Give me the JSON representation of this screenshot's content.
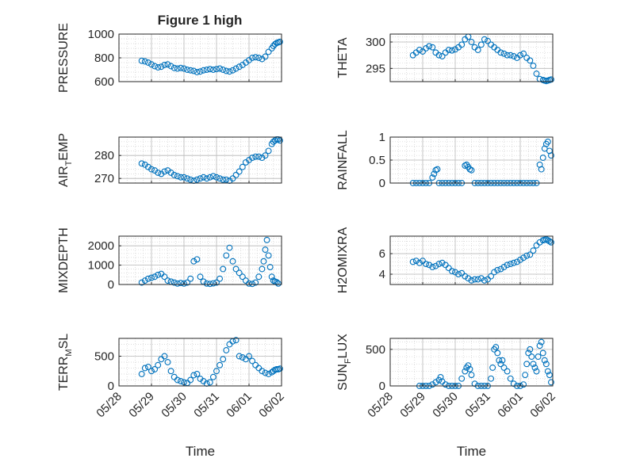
{
  "figure": {
    "title": "Figure 1 high"
  },
  "chart_data": [
    {
      "type": "scatter",
      "ylabel": "PRESSURE",
      "ylim": [
        600,
        1000
      ],
      "yticks": [
        600,
        800,
        1000
      ],
      "xlim": [
        "05/28",
        "06/02"
      ],
      "xticks": [
        "05/28",
        "05/29",
        "05/30",
        "05/31",
        "06/01",
        "06/02"
      ],
      "xlabel": "",
      "grid": true,
      "series": [
        {
          "x": [
            0.7,
            0.8,
            0.9,
            1.0,
            1.1,
            1.2,
            1.3,
            1.4,
            1.5,
            1.6,
            1.7,
            1.8,
            1.9,
            2.0,
            2.1,
            2.2,
            2.3,
            2.4,
            2.5,
            2.6,
            2.7,
            2.8,
            2.9,
            3.0,
            3.1,
            3.2,
            3.3,
            3.4,
            3.5,
            3.6,
            3.7,
            3.8,
            3.9,
            4.0,
            4.1,
            4.2,
            4.3,
            4.4,
            4.5,
            4.6,
            4.7,
            4.75,
            4.8,
            4.85,
            4.9,
            4.95
          ],
          "y": [
            775,
            770,
            760,
            745,
            730,
            720,
            725,
            740,
            745,
            730,
            715,
            710,
            715,
            710,
            700,
            695,
            690,
            680,
            685,
            695,
            700,
            705,
            700,
            705,
            710,
            700,
            690,
            685,
            695,
            710,
            725,
            740,
            760,
            780,
            800,
            805,
            800,
            790,
            810,
            850,
            880,
            900,
            915,
            925,
            930,
            935
          ]
        }
      ]
    },
    {
      "type": "scatter",
      "ylabel": "THETA",
      "ylim": [
        292.5,
        301.5
      ],
      "yticks": [
        295,
        300
      ],
      "xlim": [
        "05/28",
        "06/02"
      ],
      "xticks": [
        "05/28",
        "05/29",
        "05/30",
        "05/31",
        "06/01",
        "06/02"
      ],
      "xlabel": "",
      "grid": true,
      "series": [
        {
          "x": [
            0.7,
            0.8,
            0.9,
            1.0,
            1.1,
            1.2,
            1.3,
            1.4,
            1.5,
            1.6,
            1.7,
            1.8,
            1.9,
            2.0,
            2.1,
            2.2,
            2.3,
            2.4,
            2.5,
            2.6,
            2.7,
            2.8,
            2.9,
            3.0,
            3.1,
            3.2,
            3.3,
            3.4,
            3.5,
            3.6,
            3.7,
            3.8,
            3.9,
            4.0,
            4.1,
            4.2,
            4.3,
            4.4,
            4.5,
            4.6,
            4.7,
            4.75,
            4.8,
            4.85,
            4.9,
            4.95
          ],
          "y": [
            297.5,
            298.0,
            298.5,
            298.2,
            298.8,
            299.2,
            299.0,
            298.0,
            297.5,
            297.3,
            298.0,
            298.5,
            298.4,
            298.6,
            299.0,
            299.5,
            300.5,
            301.0,
            300.0,
            299.0,
            298.5,
            299.5,
            300.5,
            300.2,
            299.5,
            299.0,
            298.5,
            298.0,
            297.8,
            297.5,
            297.5,
            297.3,
            297.0,
            297.5,
            297.8,
            297.0,
            296.5,
            295.5,
            294.0,
            293.0,
            292.8,
            292.7,
            292.6,
            292.7,
            292.8,
            292.9
          ]
        }
      ]
    },
    {
      "type": "scatter",
      "ylabel": "AIR_TEMP",
      "ylim": [
        268,
        288
      ],
      "yticks": [
        270,
        280
      ],
      "xlim": [
        "05/28",
        "06/02"
      ],
      "xticks": [
        "05/28",
        "05/29",
        "05/30",
        "05/31",
        "06/01",
        "06/02"
      ],
      "xlabel": "",
      "grid": true,
      "series": [
        {
          "x": [
            0.7,
            0.8,
            0.9,
            1.0,
            1.1,
            1.2,
            1.3,
            1.4,
            1.5,
            1.6,
            1.7,
            1.8,
            1.9,
            2.0,
            2.1,
            2.2,
            2.3,
            2.4,
            2.5,
            2.6,
            2.7,
            2.8,
            2.9,
            3.0,
            3.1,
            3.2,
            3.3,
            3.4,
            3.5,
            3.6,
            3.7,
            3.8,
            3.9,
            4.0,
            4.1,
            4.2,
            4.3,
            4.4,
            4.5,
            4.6,
            4.7,
            4.75,
            4.8,
            4.85,
            4.9,
            4.95
          ],
          "y": [
            276.5,
            276.0,
            275.0,
            274.0,
            273.5,
            272.5,
            272.0,
            273.0,
            273.5,
            272.5,
            271.5,
            271.0,
            270.5,
            270.5,
            270.0,
            269.5,
            269.0,
            269.5,
            270.0,
            270.5,
            270.0,
            270.5,
            271.0,
            270.5,
            270.0,
            269.5,
            269.5,
            269.0,
            270.0,
            271.5,
            273.0,
            275.0,
            277.0,
            278.0,
            279.0,
            279.5,
            279.5,
            279.0,
            280.0,
            282.0,
            285.0,
            286.0,
            286.5,
            287.0,
            287.0,
            286.5
          ]
        }
      ]
    },
    {
      "type": "scatter",
      "ylabel": "RAINFALL",
      "ylim": [
        0,
        1
      ],
      "yticks": [
        0,
        0.5,
        1
      ],
      "xlim": [
        "05/28",
        "06/02"
      ],
      "xticks": [
        "05/28",
        "05/29",
        "05/30",
        "05/31",
        "06/01",
        "06/02"
      ],
      "xlabel": "",
      "grid": true,
      "series": [
        {
          "x": [
            0.7,
            0.8,
            0.9,
            1.0,
            1.1,
            1.2,
            1.3,
            1.35,
            1.4,
            1.45,
            1.5,
            1.6,
            1.7,
            1.8,
            1.9,
            2.0,
            2.1,
            2.2,
            2.3,
            2.35,
            2.4,
            2.45,
            2.5,
            2.6,
            2.7,
            2.8,
            2.9,
            3.0,
            3.1,
            3.2,
            3.3,
            3.4,
            3.5,
            3.6,
            3.7,
            3.8,
            3.9,
            4.0,
            4.1,
            4.2,
            4.3,
            4.4,
            4.5,
            4.6,
            4.65,
            4.7,
            4.75,
            4.8,
            4.85,
            4.9,
            4.95
          ],
          "y": [
            0,
            0,
            0,
            0,
            0,
            0,
            0.12,
            0.2,
            0.28,
            0.3,
            0,
            0,
            0,
            0,
            0,
            0,
            0,
            0,
            0.38,
            0.4,
            0.35,
            0.3,
            0.28,
            0,
            0,
            0,
            0,
            0,
            0,
            0,
            0,
            0,
            0,
            0,
            0,
            0,
            0,
            0,
            0,
            0,
            0,
            0,
            0,
            0.4,
            0.3,
            0.55,
            0.75,
            0.85,
            0.9,
            0.7,
            0.6
          ]
        }
      ]
    },
    {
      "type": "scatter",
      "ylabel": "MIXDEPTH",
      "ylim": [
        0,
        2500
      ],
      "yticks": [
        0,
        1000,
        2000
      ],
      "xlim": [
        "05/28",
        "06/02"
      ],
      "xticks": [
        "05/28",
        "05/29",
        "05/30",
        "05/31",
        "06/01",
        "06/02"
      ],
      "xlabel": "",
      "grid": true,
      "series": [
        {
          "x": [
            0.7,
            0.8,
            0.9,
            1.0,
            1.1,
            1.2,
            1.3,
            1.4,
            1.5,
            1.6,
            1.7,
            1.8,
            1.9,
            2.0,
            2.1,
            2.2,
            2.3,
            2.4,
            2.5,
            2.6,
            2.7,
            2.8,
            2.9,
            3.0,
            3.1,
            3.2,
            3.3,
            3.4,
            3.5,
            3.6,
            3.7,
            3.8,
            3.9,
            4.0,
            4.1,
            4.2,
            4.3,
            4.4,
            4.45,
            4.5,
            4.55,
            4.6,
            4.65,
            4.7,
            4.75,
            4.8,
            4.85,
            4.9
          ],
          "y": [
            100,
            200,
            300,
            350,
            400,
            500,
            550,
            400,
            200,
            150,
            100,
            50,
            80,
            50,
            100,
            300,
            1200,
            1300,
            400,
            150,
            50,
            30,
            60,
            100,
            300,
            800,
            1500,
            1900,
            1200,
            800,
            600,
            400,
            200,
            50,
            30,
            100,
            400,
            800,
            1200,
            1800,
            2300,
            1500,
            900,
            400,
            200,
            150,
            120,
            50
          ]
        }
      ]
    },
    {
      "type": "scatter",
      "ylabel": "H2OMIXRA",
      "ylim": [
        3,
        7.7
      ],
      "yticks": [
        4,
        6
      ],
      "xlim": [
        "05/28",
        "06/02"
      ],
      "xticks": [
        "05/28",
        "05/29",
        "05/30",
        "05/31",
        "06/01",
        "06/02"
      ],
      "xlabel": "",
      "grid": true,
      "series": [
        {
          "x": [
            0.7,
            0.8,
            0.9,
            1.0,
            1.1,
            1.2,
            1.3,
            1.4,
            1.5,
            1.6,
            1.7,
            1.8,
            1.9,
            2.0,
            2.1,
            2.2,
            2.3,
            2.4,
            2.5,
            2.6,
            2.7,
            2.8,
            2.9,
            3.0,
            3.1,
            3.2,
            3.3,
            3.4,
            3.5,
            3.6,
            3.7,
            3.8,
            3.9,
            4.0,
            4.1,
            4.2,
            4.3,
            4.4,
            4.5,
            4.6,
            4.7,
            4.75,
            4.8,
            4.85,
            4.9,
            4.95
          ],
          "y": [
            5.2,
            5.3,
            5.1,
            5.3,
            5.0,
            4.9,
            4.7,
            4.8,
            5.0,
            5.1,
            4.9,
            4.6,
            4.3,
            4.2,
            4.0,
            4.1,
            3.8,
            3.6,
            3.4,
            3.5,
            3.5,
            3.6,
            3.4,
            3.5,
            3.8,
            4.2,
            4.4,
            4.5,
            4.7,
            4.9,
            5.0,
            5.1,
            5.2,
            5.4,
            5.6,
            5.8,
            5.9,
            6.3,
            6.8,
            7.1,
            7.3,
            7.35,
            7.4,
            7.3,
            7.2,
            7.1
          ]
        }
      ]
    },
    {
      "type": "scatter",
      "ylabel": "TERR_MSL",
      "ylim": [
        0,
        800
      ],
      "yticks": [
        0,
        500
      ],
      "xlim": [
        "05/28",
        "06/02"
      ],
      "xticks": [
        "05/28",
        "05/29",
        "05/30",
        "05/31",
        "06/01",
        "06/02"
      ],
      "xlabel": "Time",
      "grid": true,
      "series": [
        {
          "x": [
            0.7,
            0.8,
            0.9,
            1.0,
            1.1,
            1.2,
            1.3,
            1.4,
            1.5,
            1.6,
            1.7,
            1.8,
            1.9,
            2.0,
            2.1,
            2.2,
            2.3,
            2.4,
            2.5,
            2.6,
            2.7,
            2.8,
            2.9,
            3.0,
            3.1,
            3.2,
            3.3,
            3.4,
            3.5,
            3.6,
            3.7,
            3.8,
            3.9,
            4.0,
            4.1,
            4.2,
            4.3,
            4.4,
            4.5,
            4.6,
            4.7,
            4.75,
            4.8,
            4.85,
            4.9,
            4.95
          ],
          "y": [
            200,
            300,
            320,
            250,
            280,
            350,
            450,
            500,
            400,
            250,
            150,
            100,
            80,
            60,
            50,
            100,
            180,
            200,
            120,
            80,
            40,
            60,
            150,
            250,
            350,
            450,
            600,
            700,
            750,
            770,
            500,
            480,
            450,
            500,
            420,
            350,
            300,
            250,
            220,
            200,
            230,
            250,
            270,
            280,
            280,
            290
          ]
        }
      ]
    },
    {
      "type": "scatter",
      "ylabel": "SUN_FLUX",
      "ylim": [
        0,
        650
      ],
      "yticks": [
        0,
        500
      ],
      "xlim": [
        "05/28",
        "06/02"
      ],
      "xticks": [
        "05/28",
        "05/29",
        "05/30",
        "05/31",
        "06/01",
        "06/02"
      ],
      "xlabel": "Time",
      "grid": true,
      "series": [
        {
          "x": [
            0.9,
            1.0,
            1.1,
            1.2,
            1.3,
            1.4,
            1.5,
            1.55,
            1.6,
            1.7,
            1.8,
            1.9,
            2.0,
            2.1,
            2.2,
            2.3,
            2.35,
            2.4,
            2.45,
            2.5,
            2.6,
            2.7,
            2.8,
            2.9,
            3.0,
            3.1,
            3.15,
            3.2,
            3.25,
            3.3,
            3.35,
            3.4,
            3.45,
            3.5,
            3.6,
            3.7,
            3.8,
            3.9,
            4.0,
            4.1,
            4.15,
            4.2,
            4.25,
            4.3,
            4.35,
            4.4,
            4.45,
            4.5,
            4.55,
            4.6,
            4.65,
            4.7,
            4.75,
            4.8,
            4.85,
            4.9,
            4.95
          ],
          "y": [
            0,
            0,
            0,
            0,
            20,
            50,
            80,
            120,
            60,
            20,
            0,
            0,
            0,
            0,
            100,
            200,
            250,
            280,
            230,
            150,
            30,
            0,
            0,
            0,
            0,
            100,
            250,
            500,
            530,
            450,
            350,
            300,
            350,
            250,
            200,
            100,
            30,
            0,
            0,
            20,
            150,
            300,
            450,
            500,
            400,
            300,
            250,
            200,
            400,
            550,
            600,
            450,
            350,
            300,
            200,
            150,
            50
          ]
        }
      ]
    }
  ]
}
